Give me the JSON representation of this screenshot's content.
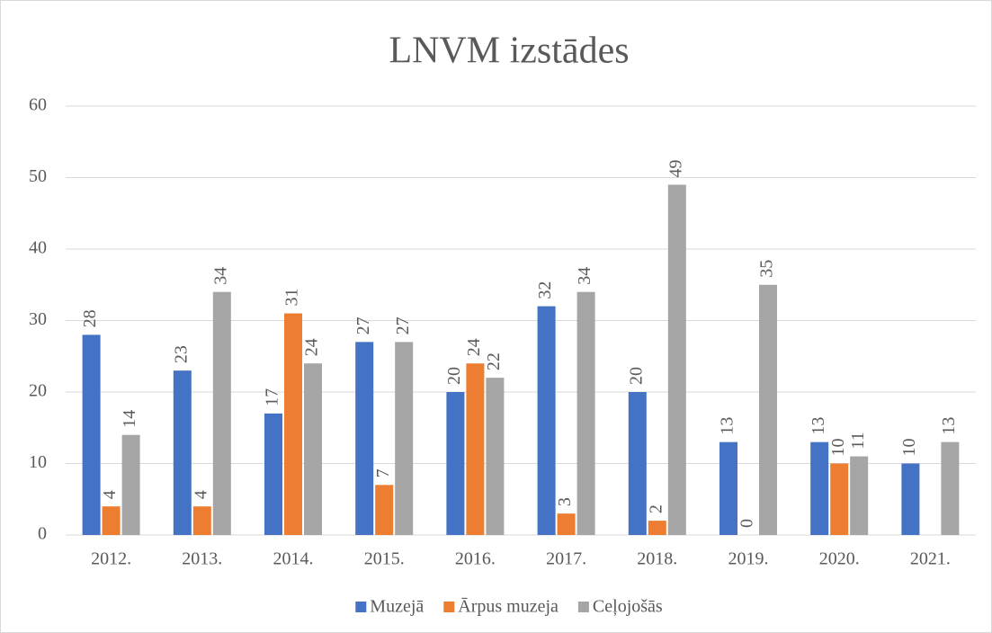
{
  "chart_data": {
    "type": "bar",
    "title": "LNVM izstādes",
    "categories": [
      "2012.",
      "2013.",
      "2014.",
      "2015.",
      "2016.",
      "2017.",
      "2018.",
      "2019.",
      "2020.",
      "2021."
    ],
    "series": [
      {
        "name": "Muzejā",
        "color": "#4472c4",
        "values": [
          28,
          23,
          17,
          27,
          20,
          32,
          20,
          13,
          13,
          10
        ]
      },
      {
        "name": "Ārpus muzeja",
        "color": "#ed7d31",
        "values": [
          4,
          4,
          31,
          7,
          24,
          3,
          2,
          0,
          10,
          null
        ]
      },
      {
        "name": "Ceļojošās",
        "color": "#a5a5a5",
        "values": [
          14,
          34,
          24,
          27,
          22,
          34,
          49,
          35,
          11,
          13
        ]
      }
    ],
    "ylim": [
      0,
      60
    ],
    "yticks": [
      0,
      10,
      20,
      30,
      40,
      50,
      60
    ],
    "grid": true,
    "legend": "bottom"
  }
}
